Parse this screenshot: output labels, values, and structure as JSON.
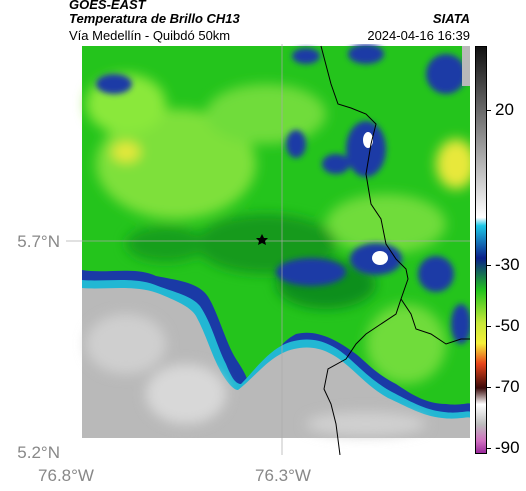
{
  "header": {
    "satellite": "GOES-EAST",
    "product": "Temperatura de Brillo CH13",
    "region": "Vía Medellín - Quibdó 50km",
    "org": "SIATA",
    "datetime": "2024-04-16 16:39"
  },
  "axes": {
    "y_ticks": [
      "5.7°N",
      "5.2°N"
    ],
    "x_ticks": [
      "76.8°W",
      "76.3°W"
    ]
  },
  "colorbar": {
    "ticks": [
      "20",
      "-30",
      "-50",
      "-70",
      "-90"
    ],
    "tick_values": [
      20,
      -30,
      -50,
      -70,
      -90
    ]
  },
  "map": {
    "marker": "star-marker",
    "colors": {
      "warm_gray": "#b9b9b9",
      "light_gray": "#e6e6e6",
      "cyan": "#22b7d3",
      "blue": "#1a3aa6",
      "dark_blue": "#0b1f6e",
      "green": "#1fc21a",
      "dark_green": "#0f8f1a",
      "lime": "#8ae83a",
      "yellow": "#e8e83a",
      "white": "#ffffff"
    }
  }
}
